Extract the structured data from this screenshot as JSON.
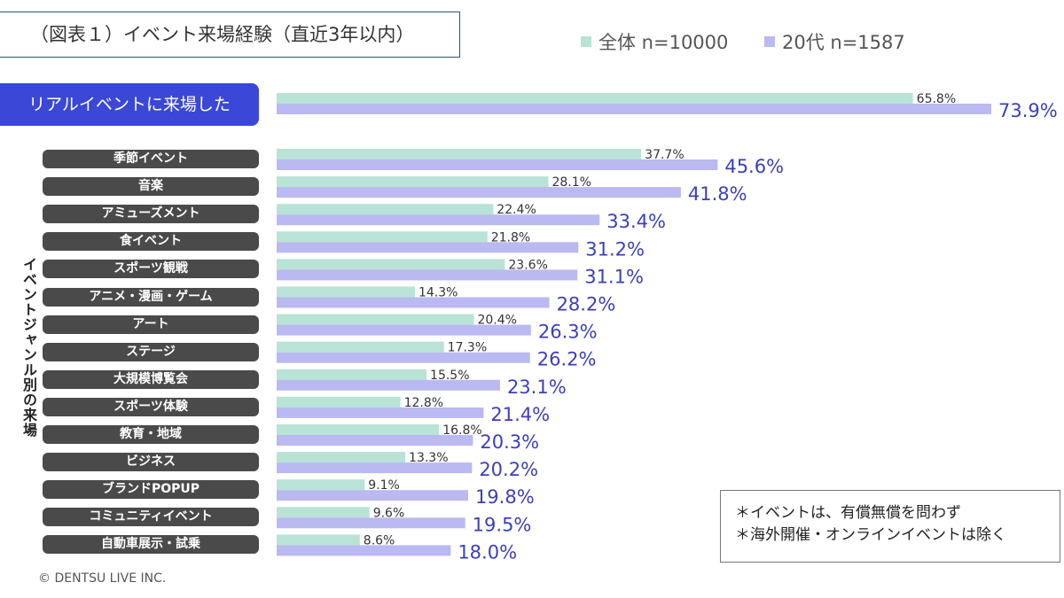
{
  "title": "（図表１）イベント来場経験（直近3年以内）",
  "side_label": "イベントジャンル別の来場",
  "note_lines": [
    "＊イベントは、有償無償を問わず",
    "＊海外開催・オンラインイベントは除く"
  ],
  "copyright": "© DENTSU LIVE INC.",
  "colors": {
    "series1": "#b8e3d6",
    "series2": "#bab9f2",
    "label2": "#3d3fb8",
    "highlight": "#3b47d6"
  },
  "chart_data": {
    "type": "bar",
    "orientation": "horizontal",
    "series": [
      {
        "name": "全体 n=10000"
      },
      {
        "name": "20代 n=1587"
      }
    ],
    "rows": [
      {
        "label": "リアルイベントに来場した",
        "v1": 65.8,
        "v2": 73.9
      },
      {
        "label": "季節イベント",
        "v1": 37.7,
        "v2": 45.6
      },
      {
        "label": "音楽",
        "v1": 28.1,
        "v2": 41.8
      },
      {
        "label": "アミューズメント",
        "v1": 22.4,
        "v2": 33.4
      },
      {
        "label": "食イベント",
        "v1": 21.8,
        "v2": 31.2
      },
      {
        "label": "スポーツ観戦",
        "v1": 23.6,
        "v2": 31.1
      },
      {
        "label": "アニメ・漫画・ゲーム",
        "v1": 14.3,
        "v2": 28.2
      },
      {
        "label": "アート",
        "v1": 20.4,
        "v2": 26.3
      },
      {
        "label": "ステージ",
        "v1": 17.3,
        "v2": 26.2
      },
      {
        "label": "大規模博覧会",
        "v1": 15.5,
        "v2": 23.1
      },
      {
        "label": "スポーツ体験",
        "v1": 12.8,
        "v2": 21.4
      },
      {
        "label": "教育・地域",
        "v1": 16.8,
        "v2": 20.3
      },
      {
        "label": "ビジネス",
        "v1": 13.3,
        "v2": 20.2
      },
      {
        "label": "ブランドPOPUP",
        "v1": 9.1,
        "v2": 19.8
      },
      {
        "label": "コミュニティイベント",
        "v1": 9.6,
        "v2": 19.5
      },
      {
        "label": "自動車展示・試乗",
        "v1": 8.6,
        "v2": 18.0
      }
    ]
  }
}
